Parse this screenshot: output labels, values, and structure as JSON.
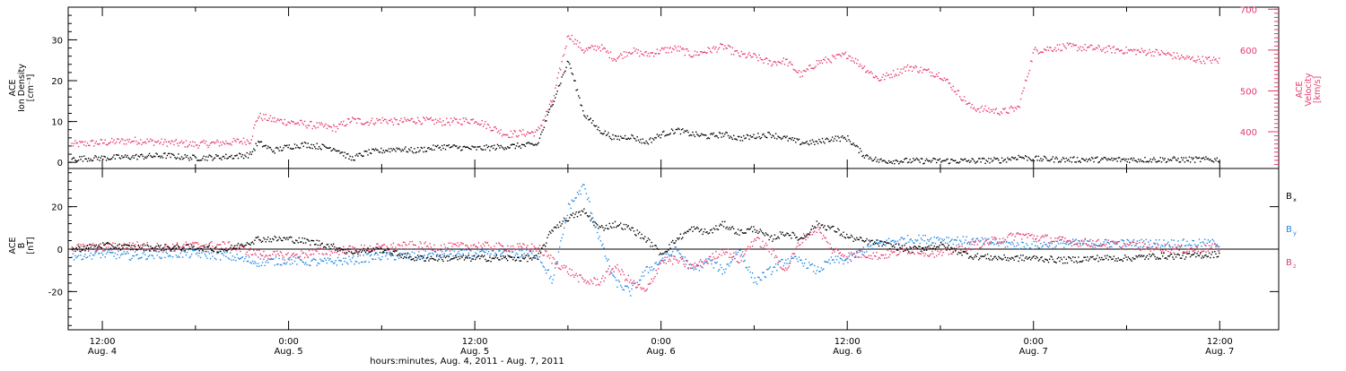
{
  "colors": {
    "black": "#000000",
    "velocity": "#e83a6a",
    "bx": "#000000",
    "by": "#1e88e5",
    "bz": "#e83a6a",
    "axis": "#000000"
  },
  "top_panel": {
    "left_label_lines": [
      "ACE",
      "Ion Density",
      "[cm⁻³]"
    ],
    "right_label_lines": [
      "ACE",
      "Velocity",
      "[km/s]"
    ]
  },
  "bottom_panel": {
    "left_label_lines": [
      "ACE",
      "B",
      "[nT]"
    ],
    "legend": [
      {
        "name": "B",
        "sub": "x",
        "color": "#000000"
      },
      {
        "name": "B",
        "sub": "y",
        "color": "#1e88e5"
      },
      {
        "name": "B",
        "sub": "z",
        "color": "#e83a6a"
      }
    ]
  },
  "xaxis": {
    "title": "hours:minutes, Aug.  4, 2011 - Aug.  7, 2011",
    "ticks": [
      {
        "t": 12,
        "time": "12:00",
        "date": "Aug. 4"
      },
      {
        "t": 24,
        "time": "0:00",
        "date": "Aug. 5"
      },
      {
        "t": 36,
        "time": "12:00",
        "date": "Aug. 5"
      },
      {
        "t": 48,
        "time": "0:00",
        "date": "Aug. 6"
      },
      {
        "t": 60,
        "time": "12:00",
        "date": "Aug. 6"
      },
      {
        "t": 72,
        "time": "0:00",
        "date": "Aug. 7"
      },
      {
        "t": 84,
        "time": "12:00",
        "date": "Aug. 7"
      }
    ]
  },
  "chart_data": [
    {
      "type": "scatter",
      "title": "",
      "xlabel": "hours:minutes, Aug.  4, 2011 - Aug.  7, 2011",
      "xlim": [
        9.8,
        87.8
      ],
      "x_units": "hours since Aug. 4 0:00",
      "y_axes": [
        {
          "label": "ACE Ion Density [cm⁻³]",
          "side": "left",
          "ylim": [
            -1.5,
            38
          ],
          "ticks": [
            0,
            10,
            20,
            30
          ]
        },
        {
          "label": "ACE Velocity [km/s]",
          "side": "right",
          "ylim": [
            310,
            705
          ],
          "ticks": [
            400,
            500,
            600,
            700
          ]
        }
      ],
      "series": [
        {
          "name": "Ion Density",
          "axis": "left",
          "color": "#000000",
          "x": [
            10,
            12,
            14,
            16,
            18,
            20,
            21.5,
            22,
            23,
            24,
            25,
            26,
            27,
            28,
            29,
            30,
            31,
            32,
            34,
            36,
            38,
            40,
            41,
            42,
            43,
            44,
            45,
            46,
            47,
            48,
            49,
            50,
            51,
            52,
            53,
            54,
            55,
            56,
            57,
            58,
            59,
            60,
            61,
            62,
            64,
            66,
            68,
            70,
            71,
            72,
            74,
            76,
            78,
            80,
            82,
            84
          ],
          "y": [
            1,
            1.2,
            1.5,
            1.8,
            1.2,
            1.5,
            2,
            5,
            3,
            4,
            4.5,
            4,
            3.5,
            1,
            2.5,
            3,
            3.5,
            3,
            4,
            3.5,
            4,
            4.5,
            15,
            25,
            12,
            8,
            6,
            6.5,
            5,
            7,
            8,
            7,
            6.5,
            7,
            6,
            6.5,
            7,
            6,
            5,
            5,
            6,
            6,
            2,
            0.5,
            0.5,
            0.5,
            0.5,
            0.7,
            1.5,
            1,
            0.8,
            0.8,
            0.8,
            0.8,
            0.8,
            0.8
          ]
        },
        {
          "name": "Velocity",
          "axis": "right",
          "color": "#e83a6a",
          "x": [
            10,
            12,
            14,
            16,
            18,
            20,
            21.5,
            22,
            23,
            24,
            25,
            26,
            27,
            28,
            29,
            30,
            31,
            32,
            34,
            36,
            38,
            40,
            41,
            42,
            43,
            44,
            45,
            46,
            47,
            48,
            49,
            50,
            51,
            52,
            53,
            54,
            55,
            56,
            57,
            58,
            59,
            60,
            61,
            62,
            64,
            66,
            68,
            70,
            71,
            72,
            74,
            76,
            78,
            80,
            82,
            84
          ],
          "y": [
            370,
            375,
            380,
            375,
            370,
            375,
            380,
            440,
            430,
            425,
            420,
            415,
            410,
            430,
            425,
            430,
            425,
            430,
            425,
            430,
            395,
            400,
            480,
            640,
            600,
            610,
            580,
            600,
            590,
            600,
            605,
            590,
            600,
            610,
            590,
            585,
            570,
            575,
            540,
            570,
            580,
            590,
            560,
            530,
            560,
            540,
            460,
            450,
            460,
            600,
            610,
            605,
            600,
            595,
            580,
            575
          ]
        }
      ]
    },
    {
      "type": "scatter",
      "title": "",
      "xlim": [
        9.8,
        87.8
      ],
      "ylim": [
        -38,
        38
      ],
      "ylabel": "ACE B [nT]",
      "yticks": [
        -20,
        0,
        20
      ],
      "series": [
        {
          "name": "Bx",
          "color": "#000000",
          "x": [
            10,
            12,
            14,
            16,
            18,
            20,
            22,
            24,
            26,
            28,
            30,
            32,
            34,
            36,
            38,
            40,
            41,
            42,
            43,
            44,
            45,
            46,
            47,
            48,
            49,
            50,
            51,
            52,
            53,
            54,
            55,
            56,
            57,
            58,
            59,
            60,
            61,
            62,
            64,
            66,
            68,
            70,
            71,
            72,
            74,
            76,
            78,
            80,
            82,
            84
          ],
          "y": [
            0,
            2,
            1,
            1,
            1,
            0,
            5,
            5,
            3,
            -1,
            0,
            -4,
            -4,
            -4,
            -4,
            -4,
            10,
            15,
            18,
            10,
            12,
            10,
            5,
            -2,
            5,
            10,
            8,
            12,
            8,
            10,
            5,
            8,
            5,
            12,
            10,
            6,
            4,
            3,
            0,
            2,
            -3,
            -4,
            -4,
            -4,
            -5,
            -4,
            -4,
            -3,
            -3,
            -2
          ]
        },
        {
          "name": "By",
          "color": "#1e88e5",
          "x": [
            10,
            12,
            14,
            16,
            18,
            20,
            22,
            24,
            26,
            28,
            30,
            32,
            34,
            36,
            38,
            40,
            41,
            42,
            43,
            44,
            45,
            46,
            47,
            48,
            49,
            50,
            51,
            52,
            53,
            54,
            55,
            56,
            57,
            58,
            59,
            60,
            61,
            62,
            64,
            66,
            68,
            70,
            71,
            72,
            74,
            76,
            78,
            80,
            82,
            84
          ],
          "y": [
            -3,
            -2,
            -3,
            -2,
            -2,
            -3,
            -6,
            -5,
            -6,
            -5,
            -3,
            -3,
            -2,
            -2,
            -2,
            -2,
            -15,
            20,
            30,
            5,
            -15,
            -20,
            -10,
            -5,
            0,
            -10,
            -5,
            -10,
            0,
            -15,
            -10,
            -5,
            -5,
            -10,
            -5,
            -5,
            0,
            3,
            5,
            5,
            4,
            3,
            2,
            2,
            3,
            3,
            3,
            3,
            3,
            3
          ]
        },
        {
          "name": "Bz",
          "color": "#e83a6a",
          "x": [
            10,
            12,
            14,
            16,
            18,
            20,
            22,
            24,
            26,
            28,
            30,
            32,
            34,
            36,
            38,
            40,
            41,
            42,
            43,
            44,
            45,
            46,
            47,
            48,
            49,
            50,
            51,
            52,
            53,
            54,
            55,
            56,
            57,
            58,
            59,
            60,
            61,
            62,
            64,
            66,
            68,
            70,
            71,
            72,
            74,
            76,
            78,
            80,
            82,
            84
          ],
          "y": [
            1,
            1,
            2,
            1,
            2,
            2,
            -2,
            -3,
            -1,
            0,
            1,
            2,
            1,
            2,
            1,
            1,
            -5,
            -10,
            -15,
            -15,
            -8,
            -15,
            -20,
            -5,
            -5,
            -8,
            -5,
            0,
            -5,
            5,
            0,
            -10,
            5,
            10,
            0,
            -3,
            -2,
            -3,
            0,
            -2,
            2,
            5,
            7,
            6,
            4,
            3,
            2,
            1,
            0,
            1
          ]
        }
      ]
    }
  ]
}
